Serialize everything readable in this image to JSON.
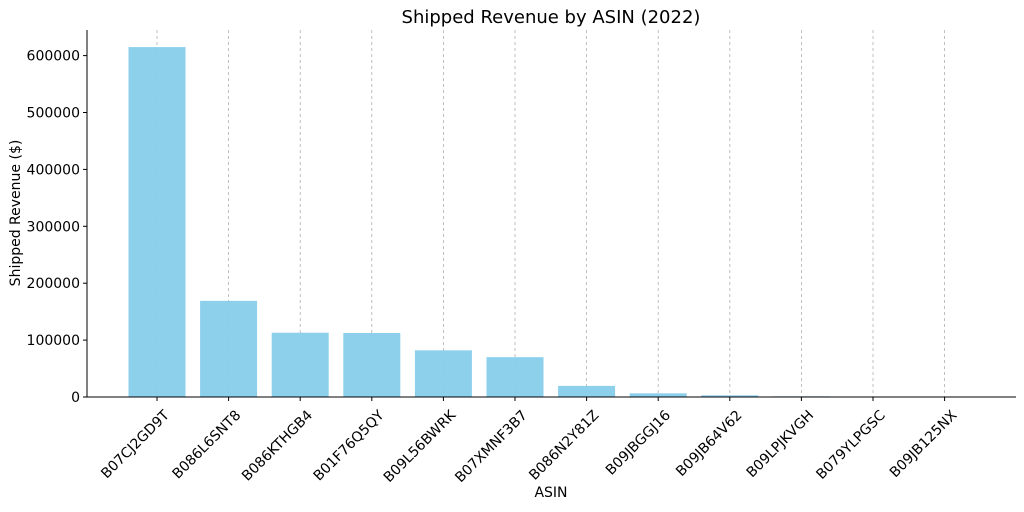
{
  "chart_data": {
    "type": "bar",
    "title": "Shipped Revenue by ASIN (2022)",
    "xlabel": "ASIN",
    "ylabel": "Shipped Revenue ($)",
    "categories": [
      "B07CJ2GD9T",
      "B086L6SNT8",
      "B086KTHGB4",
      "B01F76Q5QY",
      "B09L56BWRK",
      "B07XMNF3B7",
      "B086N2Y81Z",
      "B09JBGGJ16",
      "B09JB64V62",
      "B09LPJKVGH",
      "B079YLPGSC",
      "B09JB125NX"
    ],
    "values": [
      615000,
      169000,
      113000,
      112500,
      82000,
      70000,
      19500,
      6500,
      3000,
      1200,
      800,
      500
    ],
    "ylim": [
      0,
      645000
    ],
    "yticks": [
      0,
      100000,
      200000,
      300000,
      400000,
      500000,
      600000
    ],
    "grid": "vertical-dashed",
    "bar_color": "#87CEEB",
    "grid_color": "#b0b0b0",
    "axis_color": "#000000"
  }
}
